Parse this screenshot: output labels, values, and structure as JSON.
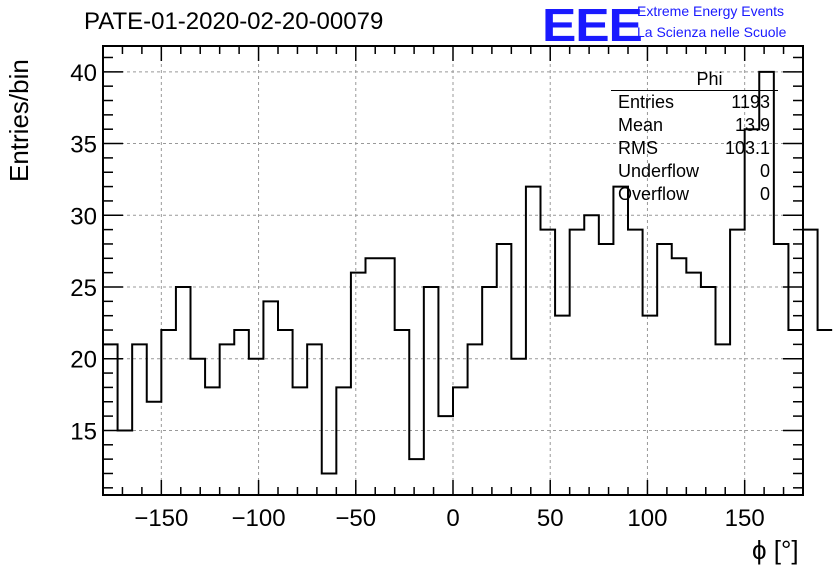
{
  "title": "PATE-01-2020-02-20-00079",
  "logo": {
    "mark": "EEE",
    "line1": "Extreme Energy Events",
    "line2": "La Scienza nelle Scuole",
    "color": "#1a1aff"
  },
  "stats_box": {
    "header": "Phi",
    "rows": [
      {
        "label": "Entries",
        "value": "1193"
      },
      {
        "label": "Mean",
        "value": "13.9"
      },
      {
        "label": "RMS",
        "value": "103.1"
      },
      {
        "label": "Underflow",
        "value": "0"
      },
      {
        "label": "Overflow",
        "value": "0"
      }
    ]
  },
  "chart_data": {
    "type": "histogram",
    "title": "PATE-01-2020-02-20-00079",
    "xlabel": "ϕ [°]",
    "ylabel": "Entries/bin",
    "xlim": [
      -180,
      180
    ],
    "ylim": [
      10.5,
      41.8
    ],
    "bin_width": 7.5,
    "bin_edges_start": -180,
    "values": [
      21,
      15,
      21,
      17,
      22,
      25,
      20,
      18,
      21,
      22,
      20,
      24,
      22,
      18,
      21,
      12,
      18,
      26,
      27,
      27,
      22,
      13,
      25,
      16,
      18,
      21,
      25,
      28,
      20,
      32,
      29,
      23,
      29,
      30,
      28,
      32,
      29,
      23,
      28,
      27,
      26,
      25,
      21,
      29,
      36,
      40,
      28,
      22,
      29,
      22
    ],
    "xticks": [
      -150,
      -100,
      -50,
      0,
      50,
      100,
      150
    ],
    "xtick_labels": [
      "−150",
      "−100",
      "−50",
      "0",
      "50",
      "100",
      "150"
    ],
    "yticks": [
      15,
      20,
      25,
      30,
      35,
      40
    ],
    "ytick_labels": [
      "15",
      "20",
      "25",
      "30",
      "35",
      "40"
    ],
    "grid": true,
    "line_color": "#000000"
  }
}
